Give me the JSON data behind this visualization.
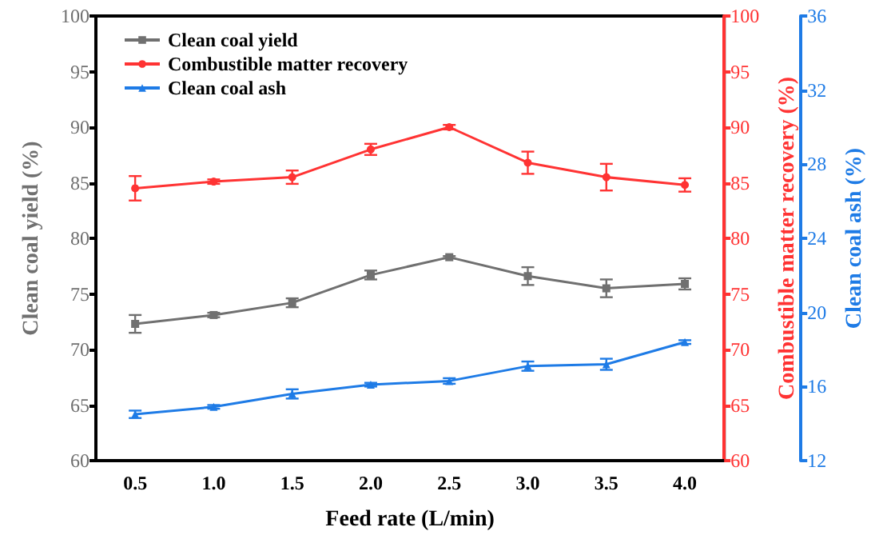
{
  "chart_data": {
    "type": "line",
    "xlabel": "Feed rate (L/min)",
    "ylabel": "Clean coal yield (%)",
    "y2label": "Combustible matter recovery (%)",
    "y3label": "Clean coal ash (%)",
    "categories": [
      "0.5",
      "1.0",
      "1.5",
      "2.0",
      "2.5",
      "3.0",
      "3.5",
      "4.0"
    ],
    "series": [
      {
        "name": "Clean coal yield",
        "color": "#707070",
        "marker": "square",
        "values": [
          72.3,
          73.1,
          74.2,
          76.7,
          78.3,
          76.6,
          75.5,
          75.9
        ],
        "errors": [
          0.8,
          0.2,
          0.4,
          0.4,
          0.1,
          0.8,
          0.8,
          0.5
        ]
      },
      {
        "name": "Combustible matter recovery",
        "color": "#ff3333",
        "marker": "circle",
        "axis": "y2",
        "values": [
          84.5,
          85.1,
          85.5,
          88.0,
          90.0,
          86.8,
          85.5,
          84.8
        ],
        "errors": [
          1.1,
          0.2,
          0.6,
          0.5,
          0.2,
          1.0,
          1.2,
          0.6
        ]
      },
      {
        "name": "Clean coal ash",
        "color": "#1e7be6",
        "marker": "triangle",
        "axis": "y3",
        "values": [
          14.5,
          14.9,
          15.6,
          16.1,
          16.3,
          17.1,
          17.2,
          18.4
        ],
        "errors": [
          0.2,
          0.1,
          0.25,
          0.1,
          0.15,
          0.25,
          0.3,
          0.1
        ]
      }
    ],
    "ylim": [
      60,
      100
    ],
    "yticks": [
      60,
      65,
      70,
      75,
      80,
      85,
      90,
      95,
      100
    ],
    "y2lim": [
      60,
      100
    ],
    "y2ticks": [
      60,
      65,
      70,
      75,
      80,
      85,
      90,
      95,
      100
    ],
    "y3lim": [
      12,
      36
    ],
    "y3ticks": [
      12,
      16,
      20,
      24,
      28,
      32,
      36
    ],
    "legend": "top left",
    "grid": false
  }
}
